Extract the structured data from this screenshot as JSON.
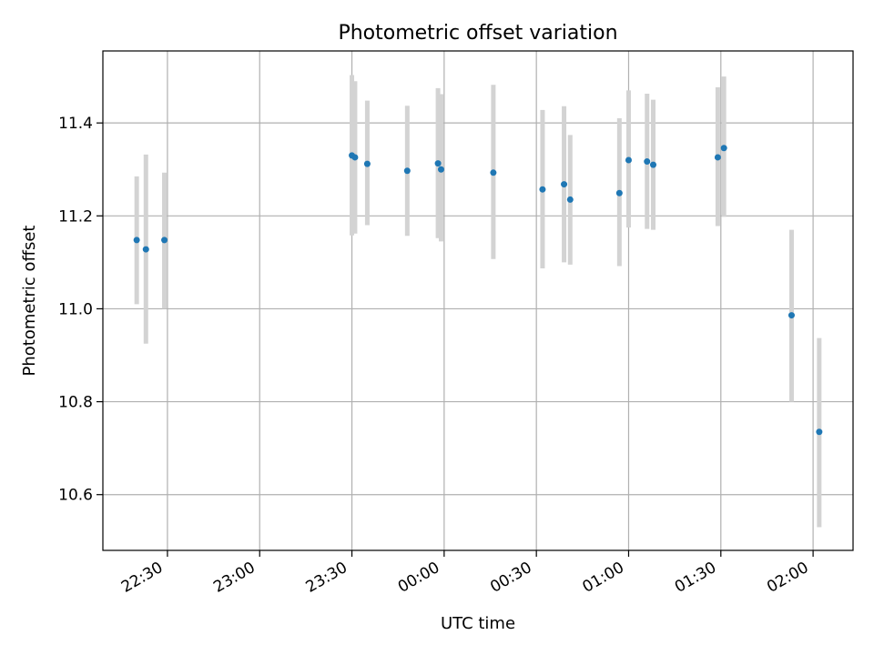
{
  "chart_data": {
    "type": "scatter",
    "title": "Photometric offset variation",
    "xlabel": "UTC time",
    "ylabel": "Photometric offset",
    "xlim": [
      "22:09",
      "02:13"
    ],
    "ylim": [
      10.48,
      11.555
    ],
    "xticks": [
      "22:30",
      "23:00",
      "23:30",
      "00:00",
      "00:30",
      "01:00",
      "01:30",
      "02:00"
    ],
    "yticks": [
      "10.6",
      "10.8",
      "11.0",
      "11.2",
      "11.4"
    ],
    "grid": true,
    "errorbar_color": "#d3d3d3",
    "point_color": "#1f77b4",
    "series": [
      {
        "points": [
          {
            "x": "22:20",
            "y": 11.148,
            "ylow": 11.01,
            "yhigh": 11.285
          },
          {
            "x": "22:23",
            "y": 11.128,
            "ylow": 10.925,
            "yhigh": 11.332
          },
          {
            "x": "22:29",
            "y": 11.148,
            "ylow": 11.0,
            "yhigh": 11.293
          },
          {
            "x": "23:30",
            "y": 11.33,
            "ylow": 11.158,
            "yhigh": 11.503
          },
          {
            "x": "23:31",
            "y": 11.326,
            "ylow": 11.162,
            "yhigh": 11.49
          },
          {
            "x": "23:35",
            "y": 11.312,
            "ylow": 11.18,
            "yhigh": 11.448
          },
          {
            "x": "23:48",
            "y": 11.297,
            "ylow": 11.157,
            "yhigh": 11.437
          },
          {
            "x": "23:58",
            "y": 11.313,
            "ylow": 11.152,
            "yhigh": 11.475
          },
          {
            "x": "23:59",
            "y": 11.3,
            "ylow": 11.145,
            "yhigh": 11.462
          },
          {
            "x": "00:16",
            "y": 11.293,
            "ylow": 11.107,
            "yhigh": 11.482
          },
          {
            "x": "00:32",
            "y": 11.257,
            "ylow": 11.087,
            "yhigh": 11.428
          },
          {
            "x": "00:39",
            "y": 11.268,
            "ylow": 11.1,
            "yhigh": 11.436
          },
          {
            "x": "00:41",
            "y": 11.235,
            "ylow": 11.095,
            "yhigh": 11.374
          },
          {
            "x": "00:57",
            "y": 11.249,
            "ylow": 11.092,
            "yhigh": 11.41
          },
          {
            "x": "01:00",
            "y": 11.32,
            "ylow": 11.175,
            "yhigh": 11.47
          },
          {
            "x": "01:06",
            "y": 11.317,
            "ylow": 11.172,
            "yhigh": 11.463
          },
          {
            "x": "01:08",
            "y": 11.31,
            "ylow": 11.17,
            "yhigh": 11.45
          },
          {
            "x": "01:29",
            "y": 11.326,
            "ylow": 11.178,
            "yhigh": 11.477
          },
          {
            "x": "01:31",
            "y": 11.346,
            "ylow": 11.198,
            "yhigh": 11.5
          },
          {
            "x": "01:53",
            "y": 10.986,
            "ylow": 10.8,
            "yhigh": 11.17
          },
          {
            "x": "02:02",
            "y": 10.735,
            "ylow": 10.53,
            "yhigh": 10.937
          }
        ]
      }
    ]
  }
}
